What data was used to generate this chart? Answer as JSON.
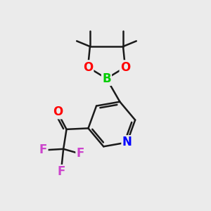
{
  "background_color": "#ebebeb",
  "bond_color": "#1a1a1a",
  "bond_width": 1.8,
  "atom_colors": {
    "O": "#ff0000",
    "B": "#00cc00",
    "N": "#0000ff",
    "F": "#cc44cc"
  },
  "fig_width": 3.0,
  "fig_height": 3.0,
  "dpi": 100
}
